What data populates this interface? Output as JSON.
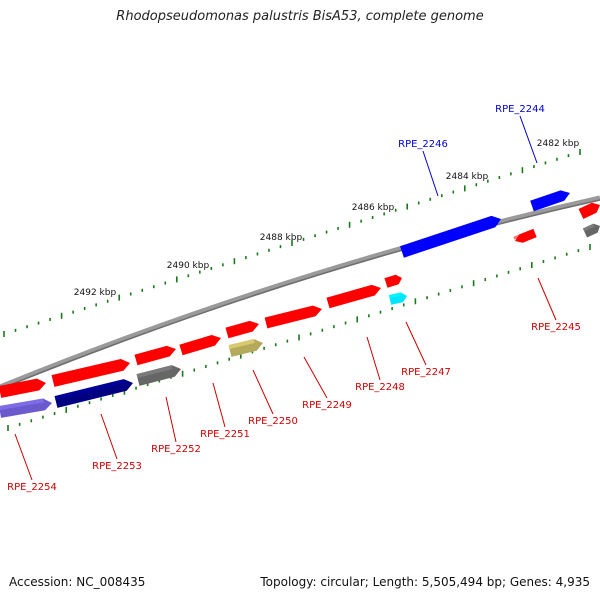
{
  "title": "Rhodopseudomonas palustris BisA53, complete genome",
  "footer": {
    "accession": "Accession: NC_008435",
    "topology": "Topology: circular; Length: 5,505,494 bp; Genes: 4,935"
  },
  "colors": {
    "background": "#ffffff",
    "backbone": "#808080",
    "ticks": "#1a7a1a",
    "forward_gene": "#ff0000",
    "reverse_gene": "#0000ff",
    "label_red": "#cc0000",
    "label_blue": "#0000cc"
  },
  "scale_labels": [
    "2482 kbp",
    "2484 kbp",
    "2486 kbp",
    "2488 kbp",
    "2490 kbp",
    "2492 kbp"
  ],
  "genes": [
    {
      "id": "RPE_2244",
      "color": "#0000ff",
      "label_color": "#0000cc"
    },
    {
      "id": "RPE_2245",
      "color": "#ff0000",
      "label_color": "#cc0000"
    },
    {
      "id": "RPE_2246",
      "color": "#0000ff",
      "label_color": "#0000cc"
    },
    {
      "id": "RPE_2247",
      "color": "#00e5ff",
      "label_color": "#cc0000"
    },
    {
      "id": "RPE_2248",
      "color": "#ff0000",
      "label_color": "#cc0000"
    },
    {
      "id": "RPE_2249",
      "color": "#ff0000",
      "label_color": "#cc0000"
    },
    {
      "id": "RPE_2250",
      "color": "#b5a95c",
      "label_color": "#cc0000"
    },
    {
      "id": "RPE_2251",
      "color": "#ff0000",
      "label_color": "#cc0000"
    },
    {
      "id": "RPE_2252",
      "color": "#666666",
      "label_color": "#cc0000"
    },
    {
      "id": "RPE_2253",
      "color": "#000080",
      "label_color": "#cc0000"
    },
    {
      "id": "RPE_2254",
      "color": "#6a5acd",
      "label_color": "#cc0000"
    }
  ]
}
